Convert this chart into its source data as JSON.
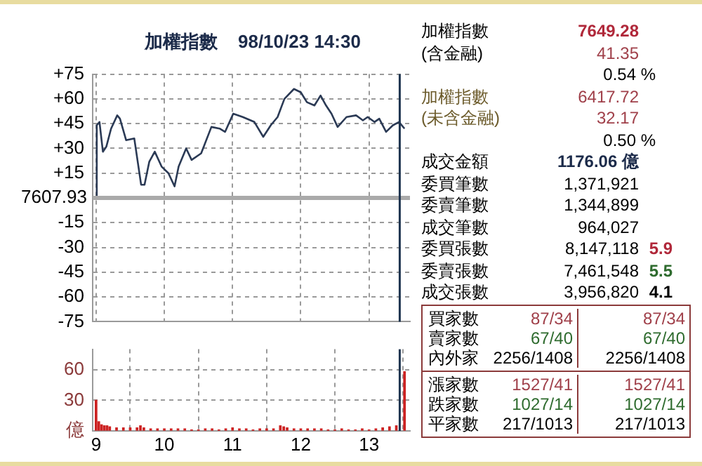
{
  "chart_data": [
    {
      "type": "line",
      "title": "加權指數    98/10/23 14:30",
      "xlim": [
        8.95,
        13.6
      ],
      "xticks": [
        9,
        10,
        11,
        12,
        13
      ],
      "ylim": [
        -75,
        75
      ],
      "yticks": [
        {
          "value": 75,
          "label": "+75"
        },
        {
          "value": 60,
          "label": "+60"
        },
        {
          "value": 45,
          "label": "+45"
        },
        {
          "value": 30,
          "label": "+30"
        },
        {
          "value": 15,
          "label": "+15"
        },
        -15,
        -30,
        -45,
        -60,
        -75
      ],
      "tick_labels": "y",
      "grid": true,
      "legend": false,
      "marker": "none",
      "line_style": "solid",
      "series": [
        {
          "color": "#2b3a55",
          "x": [
            9.0,
            9.01,
            9.05,
            9.1,
            9.15,
            9.22,
            9.31,
            9.35,
            9.44,
            9.56,
            9.66,
            9.71,
            9.78,
            9.86,
            9.96,
            10.06,
            10.15,
            10.21,
            10.32,
            10.4,
            10.54,
            10.69,
            10.81,
            10.89,
            11.01,
            11.15,
            11.32,
            11.45,
            11.56,
            11.66,
            11.76,
            11.9,
            12.0,
            12.09,
            12.2,
            12.29,
            12.37,
            12.45,
            12.54,
            12.67,
            12.81,
            12.91,
            12.98,
            13.08,
            13.15,
            13.25,
            13.35,
            13.44,
            13.52
          ],
          "values": [
            0,
            44,
            46,
            28,
            31,
            42,
            50,
            48,
            35,
            36,
            8,
            8,
            22,
            28,
            19,
            15,
            7,
            19,
            30,
            23,
            27,
            43,
            42,
            40,
            51,
            49,
            46,
            37,
            44,
            49,
            60,
            66,
            64,
            58,
            56,
            62,
            56,
            51,
            43,
            49,
            50,
            47,
            49,
            46,
            48,
            40,
            44,
            46,
            42
          ]
        }
      ],
      "annotations": [
        "7607.93"
      ],
      "ref_lines": [
        {
          "axis": "y",
          "value": 0,
          "color": "#aaaaaa"
        },
        {
          "axis": "x",
          "value": 13.45,
          "color": "#1f3550"
        }
      ]
    },
    {
      "type": "bar",
      "xlim": [
        8.95,
        13.6
      ],
      "xticks": [
        9,
        10,
        11,
        12,
        13
      ],
      "ylim": [
        0,
        80
      ],
      "yticks": [
        {
          "value": 0,
          "label": "億"
        },
        30,
        60
      ],
      "grid": true,
      "legend": false,
      "series": [
        {
          "color": "#cc2222",
          "x": [
            9.0,
            9.04,
            9.08,
            9.12,
            9.16,
            9.2,
            9.3,
            9.4,
            9.5,
            9.6,
            9.65,
            9.7,
            9.8,
            9.9,
            10.0,
            10.1,
            10.2,
            10.3,
            10.4,
            10.5,
            10.6,
            10.7,
            10.8,
            10.9,
            11.0,
            11.1,
            11.2,
            11.3,
            11.4,
            11.5,
            11.6,
            11.7,
            11.75,
            11.8,
            11.9,
            12.0,
            12.1,
            12.2,
            12.3,
            12.4,
            12.5,
            12.6,
            12.7,
            12.8,
            12.9,
            13.0,
            13.1,
            13.2,
            13.3,
            13.4,
            13.52
          ],
          "values": [
            30,
            9,
            6,
            5,
            5,
            4,
            3,
            3,
            3,
            3,
            5,
            3,
            2,
            2,
            2,
            2,
            2,
            2,
            1,
            1,
            2,
            2,
            1,
            2,
            3,
            2,
            2,
            1,
            2,
            2,
            2,
            5,
            4,
            3,
            2,
            2,
            2,
            2,
            2,
            1,
            1,
            2,
            1,
            1,
            2,
            1,
            2,
            3,
            4,
            5,
            58
          ]
        }
      ],
      "ref_lines": [
        {
          "axis": "x",
          "value": 13.45,
          "color": "#1f3550"
        }
      ]
    },
    {
      "type": "other",
      "annotations": [
        "加權指數",
        "7649.28",
        "(含金融)",
        "41.35",
        "0.54 %",
        "加權指數",
        "6417.72",
        "(未含金融)",
        "32.17",
        "0.50 %",
        "成交金額",
        "1176.06 億",
        "委買筆數",
        "1,371,921",
        "委賣筆數",
        "1,344,899",
        "成交筆數",
        "964,027",
        "委買張數",
        "8,147,118",
        "5.9",
        "委賣張數",
        "7,461,548",
        "5.5",
        "成交張數",
        "3,956,820",
        "4.1",
        "買家數",
        "87/34",
        "87/34",
        "賣家數",
        "67/40",
        "67/40",
        "內外家",
        "2256/1408",
        "2256/1408",
        "漲家數",
        "1527/41",
        "1527/41",
        "跌家數",
        "1027/14",
        "1027/14",
        "平家數",
        "217/1013",
        "217/1013"
      ]
    }
  ]
}
